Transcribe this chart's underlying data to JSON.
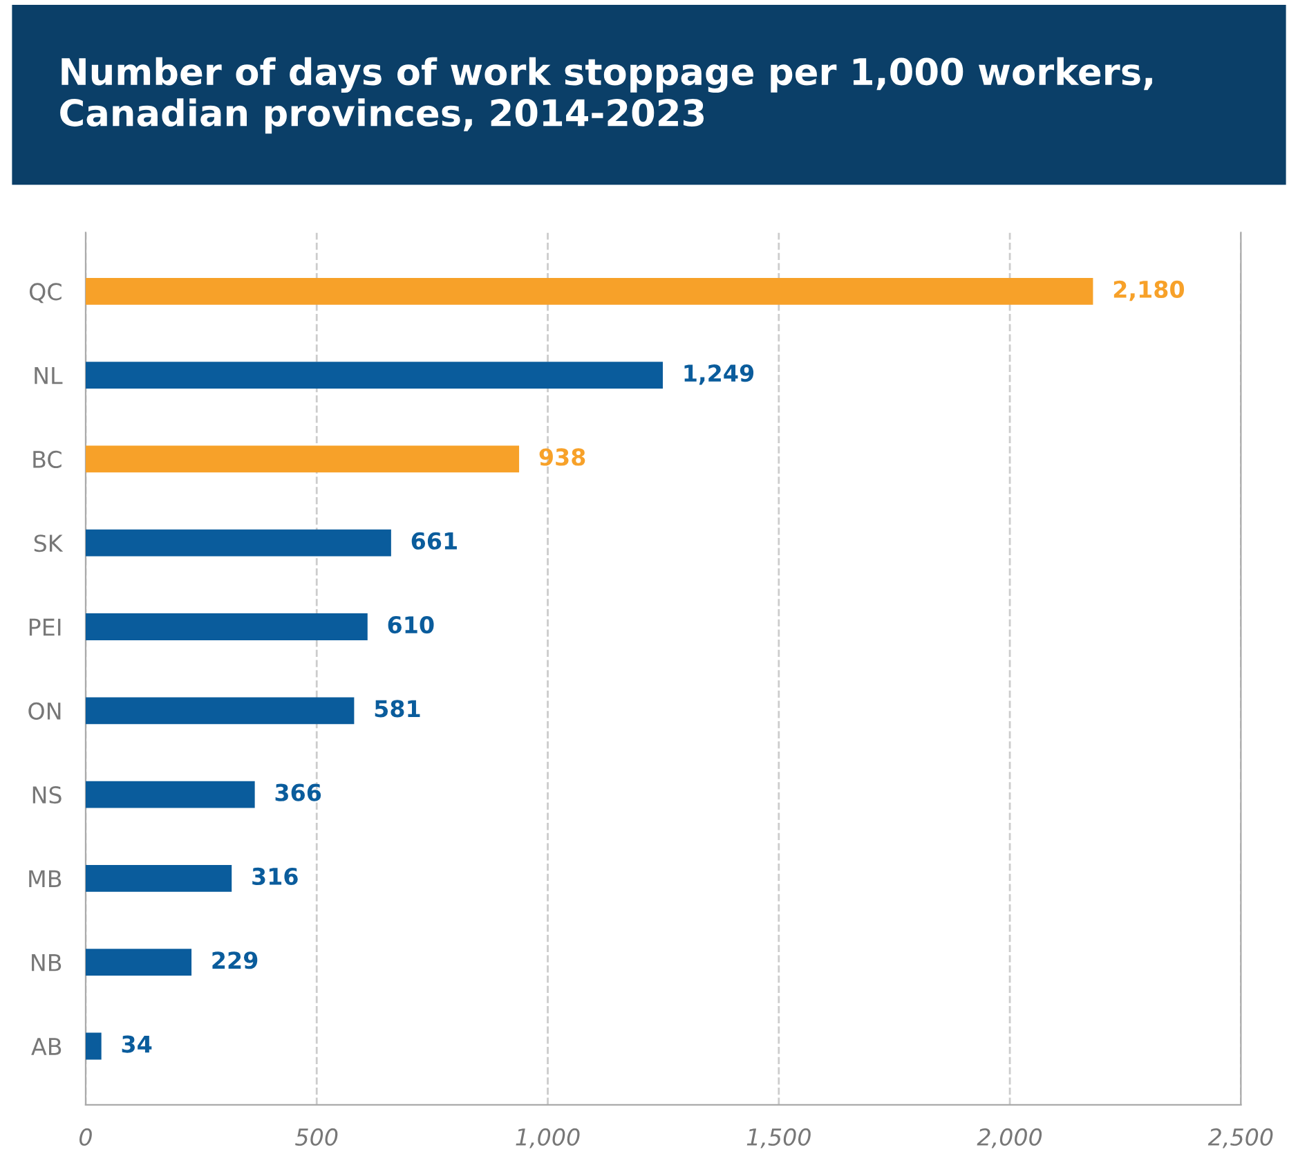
{
  "chart_data": {
    "type": "bar",
    "orientation": "horizontal",
    "title": "Number of days of work stoppage per 1,000 workers, Canadian provinces, 2014-2023",
    "categories": [
      "QC",
      "NL",
      "BC",
      "SK",
      "PEI",
      "ON",
      "NS",
      "MB",
      "NB",
      "AB"
    ],
    "values": [
      2180,
      1249,
      938,
      661,
      610,
      581,
      366,
      316,
      229,
      34
    ],
    "value_labels": [
      "2,180",
      "1,249",
      "938",
      "661",
      "610",
      "581",
      "366",
      "316",
      "229",
      "34"
    ],
    "colors": [
      "#f7a129",
      "#0a5c9c",
      "#f7a129",
      "#0a5c9c",
      "#0a5c9c",
      "#0a5c9c",
      "#0a5c9c",
      "#0a5c9c",
      "#0a5c9c",
      "#0a5c9c"
    ],
    "xlim": [
      0,
      2500
    ],
    "xticks": [
      0,
      500,
      {
        "value": 1000,
        "label": "1,000"
      },
      {
        "value": 1500,
        "label": "1,500"
      },
      {
        "value": 2000,
        "label": "2,000"
      },
      {
        "value": 2500,
        "label": "2,500"
      }
    ],
    "grid": "x",
    "legend": false
  }
}
